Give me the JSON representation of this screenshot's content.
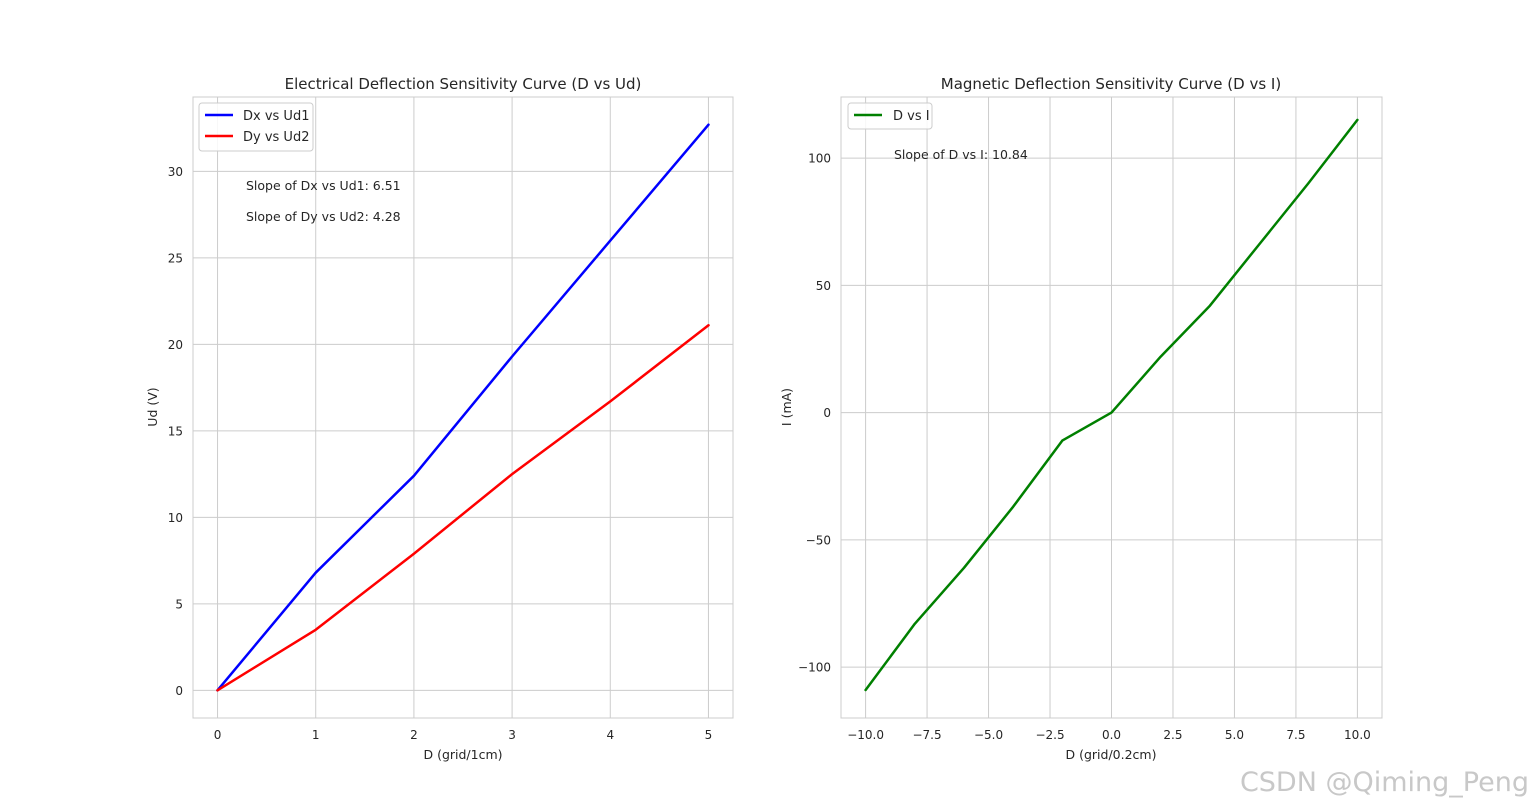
{
  "watermark": "CSDN @Qiming_Peng",
  "colors": {
    "blue": "#0000ff",
    "red": "#ff0000",
    "green": "#008000",
    "grid": "#cccccc",
    "frame": "#cccccc"
  },
  "chart_data": [
    {
      "type": "line",
      "title": "Electrical Deflection Sensitivity Curve (D vs Ud)",
      "xlabel": "D (grid/1cm)",
      "ylabel": "Ud (V)",
      "xlim": [
        -0.25,
        5.25
      ],
      "ylim": [
        -1.6,
        34.3
      ],
      "xticks": [
        0,
        1,
        2,
        3,
        4,
        5
      ],
      "xtick_labels": [
        "0",
        "1",
        "2",
        "3",
        "4",
        "5"
      ],
      "yticks": [
        0,
        5,
        10,
        15,
        20,
        25,
        30
      ],
      "ytick_labels": [
        "0",
        "5",
        "10",
        "15",
        "20",
        "25",
        "30"
      ],
      "grid": true,
      "legend_position": "top-left",
      "x": [
        0,
        1,
        2,
        3,
        4,
        5
      ],
      "series": [
        {
          "name": "Dx vs Ud1",
          "color": "#0000ff",
          "values": [
            0,
            6.8,
            12.4,
            19.3,
            26.0,
            32.7
          ]
        },
        {
          "name": "Dy vs Ud2",
          "color": "#ff0000",
          "values": [
            0,
            3.5,
            7.9,
            12.5,
            16.7,
            21.1
          ]
        }
      ],
      "annotations": [
        "Slope of Dx vs Ud1: 6.51",
        "Slope of Dy vs Ud2: 4.28"
      ]
    },
    {
      "type": "line",
      "title": "Magnetic Deflection Sensitivity Curve (D vs I)",
      "xlabel": "D (grid/0.2cm)",
      "ylabel": "I (mA)",
      "xlim": [
        -11,
        11
      ],
      "ylim": [
        -120,
        124
      ],
      "xticks": [
        -10,
        -7.5,
        -5,
        -2.5,
        0,
        2.5,
        5,
        7.5,
        10
      ],
      "xtick_labels": [
        "−10.0",
        "−7.5",
        "−5.0",
        "−2.5",
        "0.0",
        "2.5",
        "5.0",
        "7.5",
        "10.0"
      ],
      "yticks": [
        -100,
        -50,
        0,
        50,
        100
      ],
      "ytick_labels": [
        "−100",
        "−50",
        "0",
        "50",
        "100"
      ],
      "grid": true,
      "legend_position": "top-left",
      "x": [
        -10,
        -8,
        -6,
        -4,
        -2,
        0,
        2,
        4,
        6,
        8,
        10
      ],
      "series": [
        {
          "name": "D vs I",
          "color": "#008000",
          "values": [
            -109,
            -83,
            -61,
            -37,
            -11,
            0,
            22,
            42,
            66,
            90,
            115
          ]
        }
      ],
      "annotations": [
        "Slope of D vs I: 10.84"
      ]
    }
  ]
}
